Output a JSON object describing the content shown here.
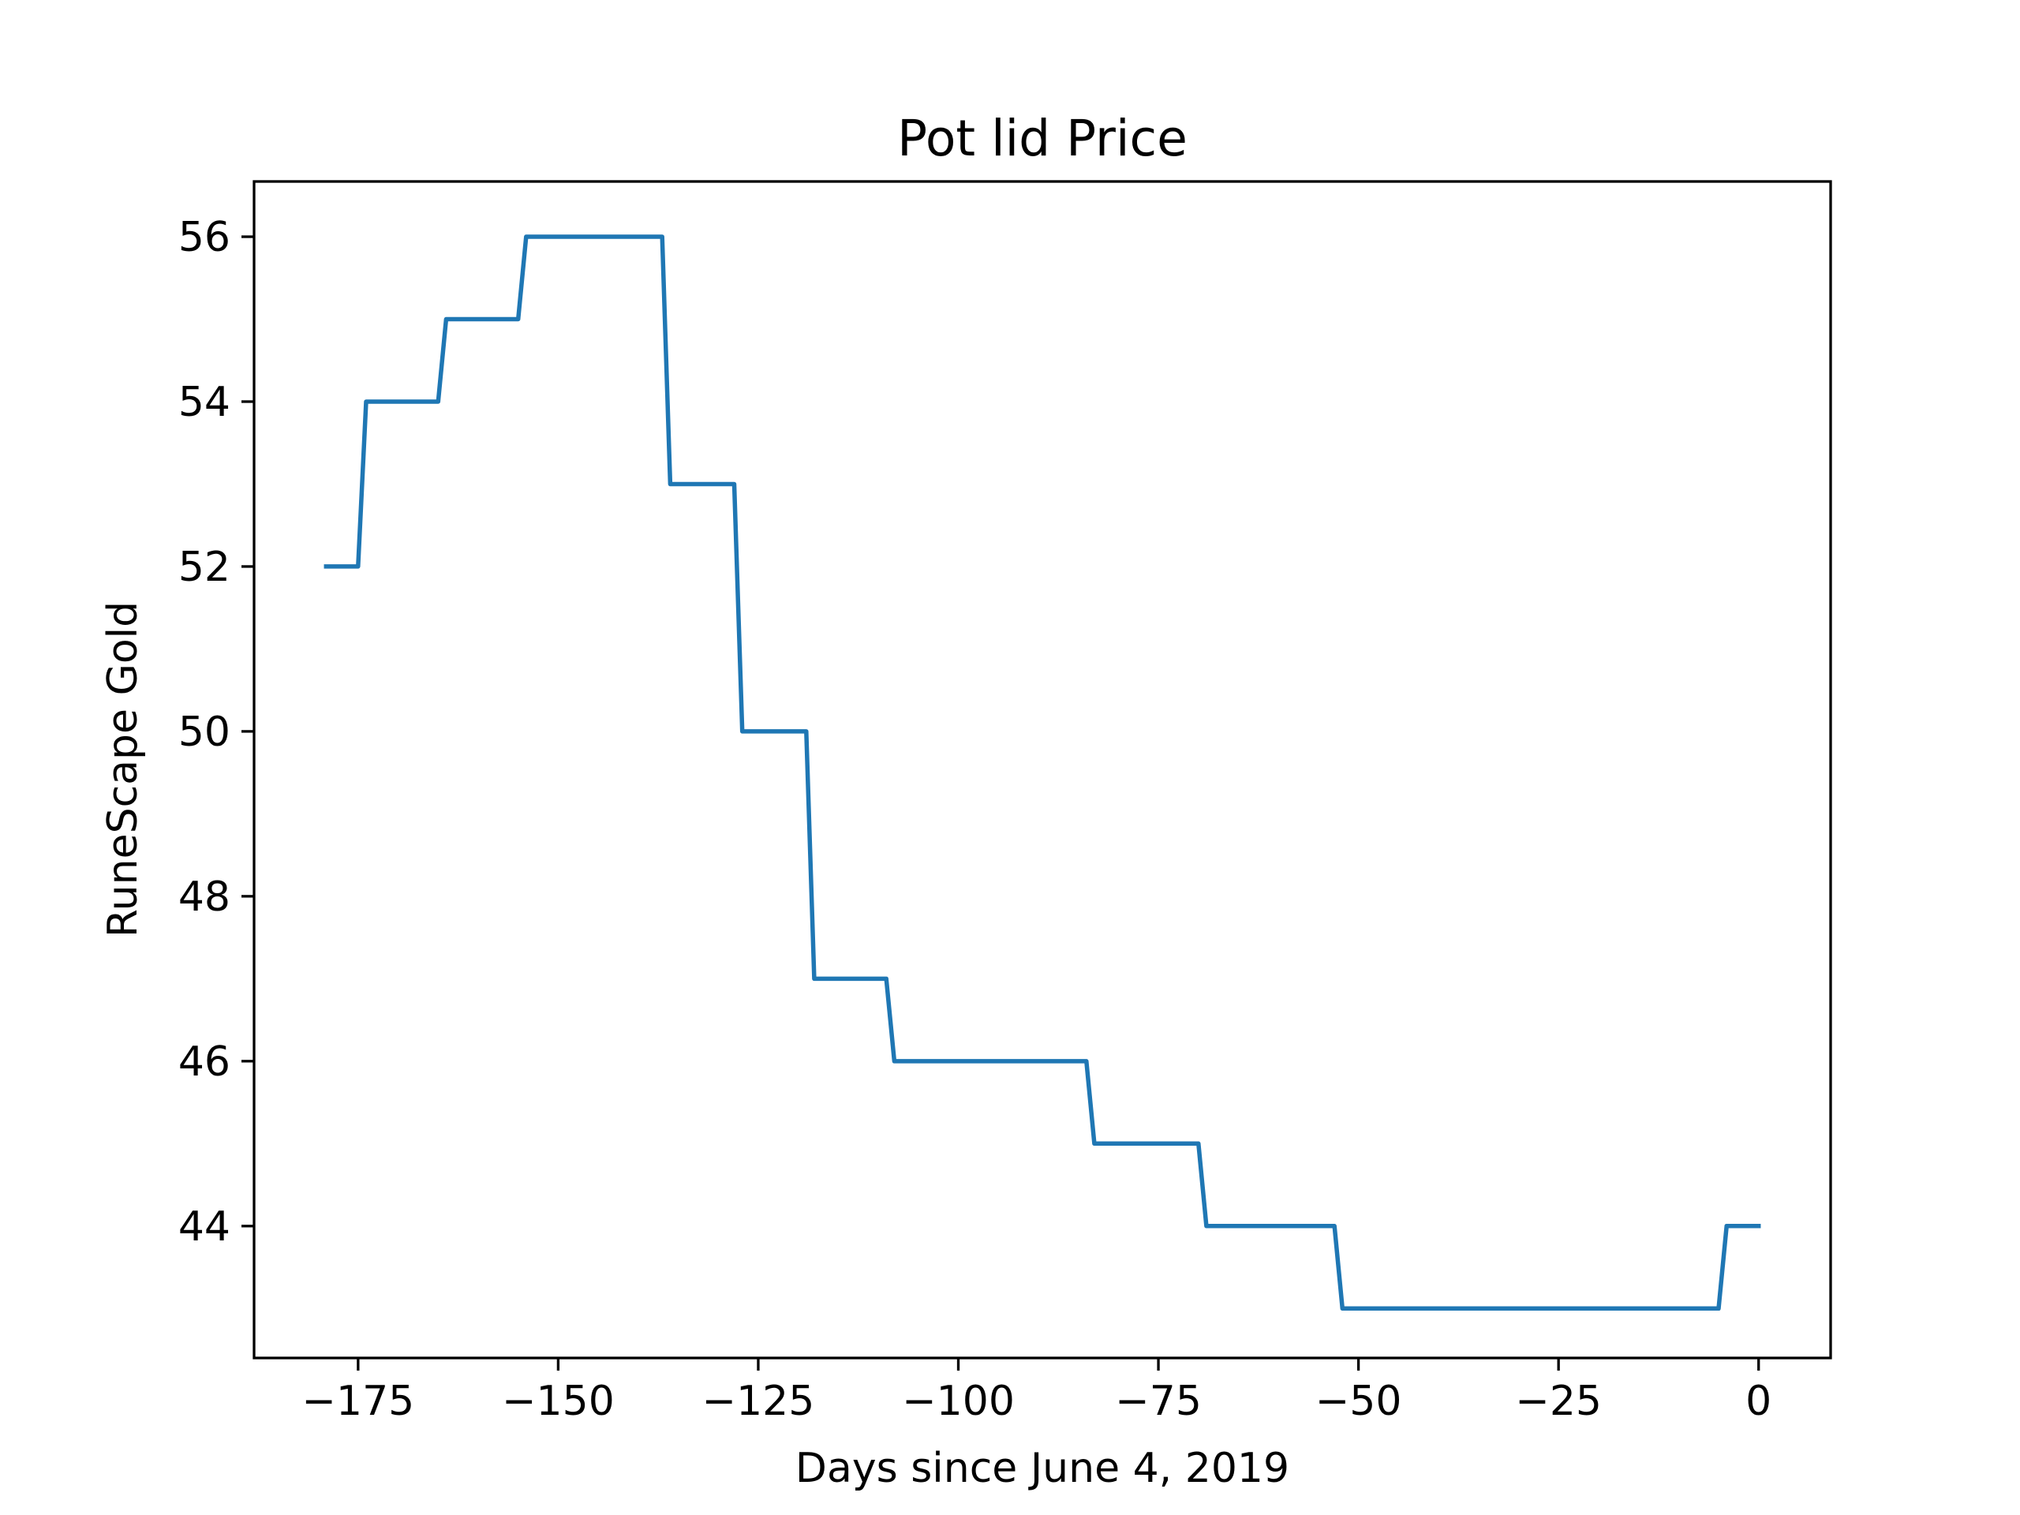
{
  "chart_data": {
    "type": "line",
    "title": "Pot lid Price",
    "xlabel": "Days since June 4, 2019",
    "ylabel": "RuneScape Gold",
    "xlim": [
      -188,
      9
    ],
    "ylim": [
      42.4,
      56.67
    ],
    "xticks": [
      -175,
      -150,
      -125,
      -100,
      -75,
      -50,
      -25,
      0
    ],
    "xtick_labels": [
      "−175",
      "−150",
      "−125",
      "−100",
      "−75",
      "−50",
      "−25",
      "0"
    ],
    "yticks": [
      44,
      46,
      48,
      50,
      52,
      54,
      56
    ],
    "ytick_labels": [
      "44",
      "46",
      "48",
      "50",
      "52",
      "54",
      "56"
    ],
    "grid": false,
    "series": [
      {
        "color": "#1f77b4",
        "x": [
          -179,
          -175,
          -174,
          -165,
          -164,
          -155,
          -154,
          -137,
          -136,
          -128,
          -127,
          -119,
          -118,
          -109,
          -108,
          -84,
          -83,
          -70,
          -69,
          -53,
          -52,
          -5,
          -4,
          0
        ],
        "y": [
          52,
          52,
          54,
          54,
          55,
          55,
          56,
          56,
          53,
          53,
          50,
          50,
          47,
          47,
          46,
          46,
          45,
          45,
          44,
          44,
          43,
          43,
          44,
          44
        ]
      }
    ]
  }
}
